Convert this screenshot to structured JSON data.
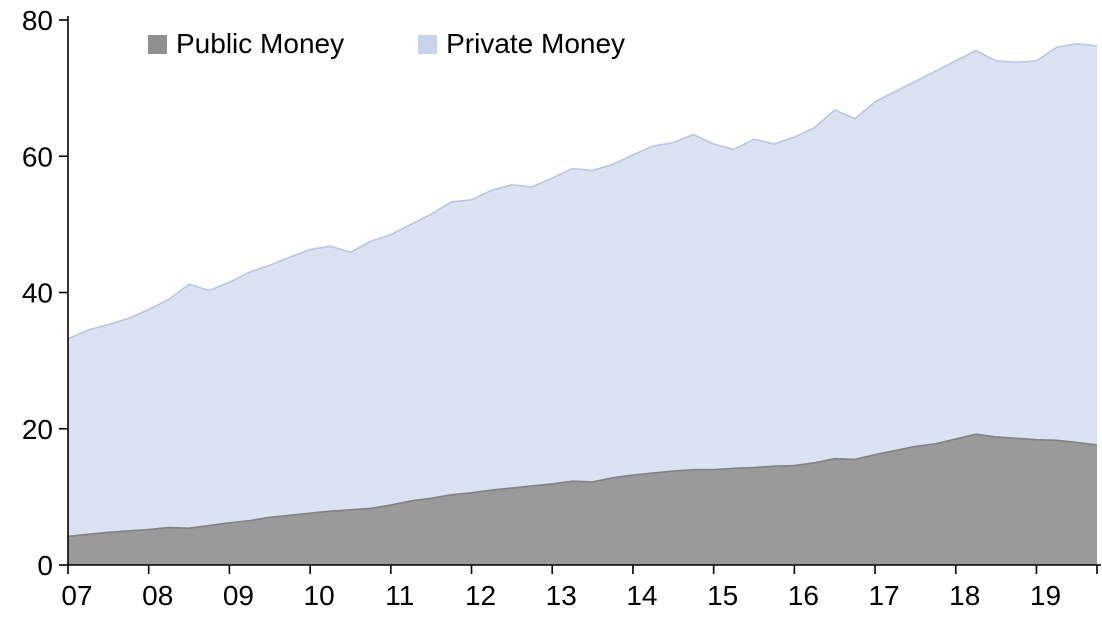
{
  "chart_data": {
    "type": "area",
    "stacked": true,
    "title": "",
    "xlabel": "",
    "ylabel": "",
    "x_tick_labels": [
      "07",
      "08",
      "09",
      "10",
      "11",
      "12",
      "13",
      "14",
      "15",
      "16",
      "17",
      "18",
      "19"
    ],
    "points_per_year": 4,
    "x_start_year": 2007,
    "ylim": [
      0,
      80
    ],
    "yticks": [
      0,
      20,
      40,
      60,
      80
    ],
    "grid": false,
    "legend_position": "top-left-inside",
    "axis_color": "#000000",
    "series": [
      {
        "name": "Public Money",
        "fill_color": "#9a9a9a",
        "line_color": "#818181",
        "swatch_color": "#8f8f8f",
        "values": [
          4.2,
          4.5,
          4.8,
          5.0,
          5.2,
          5.5,
          5.4,
          5.8,
          6.2,
          6.5,
          7.0,
          7.3,
          7.6,
          7.9,
          8.1,
          8.3,
          8.8,
          9.4,
          9.8,
          10.3,
          10.6,
          11.0,
          11.3,
          11.6,
          11.9,
          12.3,
          12.2,
          12.8,
          13.2,
          13.5,
          13.8,
          14.0,
          14.0,
          14.2,
          14.3,
          14.5,
          14.6,
          15.0,
          15.6,
          15.5,
          16.2,
          16.8,
          17.4,
          17.8,
          18.5,
          19.2,
          18.8,
          18.6,
          18.4,
          18.3,
          18.0,
          17.6
        ]
      },
      {
        "name": "Private Money",
        "fill_color": "#dbe2f3",
        "line_color": "#b9c6e4",
        "swatch_color": "#c7d2ec",
        "values": [
          29.0,
          30.0,
          30.5,
          31.2,
          32.3,
          33.5,
          35.8,
          34.5,
          35.3,
          36.5,
          37.0,
          37.9,
          38.7,
          38.9,
          37.8,
          39.2,
          39.7,
          40.6,
          41.7,
          43.0,
          43.0,
          44.0,
          44.5,
          43.9,
          44.9,
          45.9,
          45.7,
          46.0,
          47.0,
          48.0,
          48.2,
          49.2,
          47.8,
          46.8,
          48.2,
          47.3,
          48.2,
          49.2,
          51.2,
          50.0,
          51.8,
          52.7,
          53.6,
          54.7,
          55.5,
          56.3,
          55.2,
          55.2,
          55.6,
          57.7,
          58.5,
          58.6
        ]
      }
    ]
  },
  "legend": {
    "items": [
      {
        "label": "Public Money"
      },
      {
        "label": "Private Money"
      }
    ]
  }
}
